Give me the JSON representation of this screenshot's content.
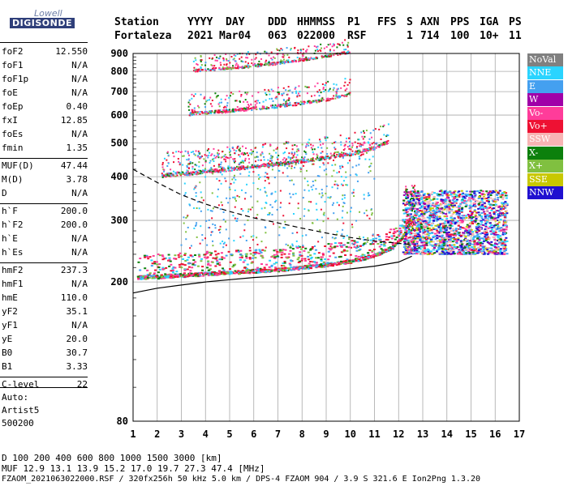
{
  "logo": {
    "line1": "Lowell",
    "line2": "DIGISONDE"
  },
  "header": {
    "labels": [
      "Station",
      "YYYY",
      "DAY",
      "DDD",
      "HHMMSS",
      "P1",
      "FFS",
      "S",
      "AXN",
      "PPS",
      "IGA",
      "PS"
    ],
    "values": [
      "Fortaleza",
      "2021",
      "Mar04",
      "063",
      "022000",
      "RSF",
      "",
      "1",
      "714",
      "100",
      "10+",
      "11"
    ]
  },
  "params": [
    {
      "k": "foF2",
      "v": "12.550"
    },
    {
      "k": "foF1",
      "v": "N/A"
    },
    {
      "k": "foF1p",
      "v": "N/A"
    },
    {
      "k": "foE",
      "v": "N/A"
    },
    {
      "k": "foEp",
      "v": "0.40"
    },
    {
      "k": "fxI",
      "v": "12.85"
    },
    {
      "k": "foEs",
      "v": "N/A"
    },
    {
      "k": "fmin",
      "v": "1.35"
    },
    {
      "k": "MUF(D)",
      "v": "47.44"
    },
    {
      "k": "M(D)",
      "v": "3.78"
    },
    {
      "k": "D",
      "v": "N/A"
    },
    {
      "k": "h`F",
      "v": "200.0"
    },
    {
      "k": "h`F2",
      "v": "200.0"
    },
    {
      "k": "h`E",
      "v": "N/A"
    },
    {
      "k": "h`Es",
      "v": "N/A"
    },
    {
      "k": "hmF2",
      "v": "237.3"
    },
    {
      "k": "hmF1",
      "v": "N/A"
    },
    {
      "k": "hmE",
      "v": "110.0"
    },
    {
      "k": "yF2",
      "v": "35.1"
    },
    {
      "k": "yF1",
      "v": "N/A"
    },
    {
      "k": "yE",
      "v": "20.0"
    },
    {
      "k": "B0",
      "v": "30.7"
    },
    {
      "k": "B1",
      "v": "3.33"
    },
    {
      "k": "C-level",
      "v": "22"
    }
  ],
  "auto": {
    "line1": "Auto:",
    "line2": "Artist5",
    "line3": "500200"
  },
  "legend": [
    {
      "label": "NoVal",
      "color": "#808080"
    },
    {
      "label": "NNE",
      "color": "#2ad4ff"
    },
    {
      "label": "E",
      "color": "#44a0f0"
    },
    {
      "label": "W",
      "color": "#a000a8"
    },
    {
      "label": "Vo-",
      "color": "#ff3c9a"
    },
    {
      "label": "Vo+",
      "color": "#ee1133"
    },
    {
      "label": "SSW",
      "color": "#f8b4b4"
    },
    {
      "label": "X-",
      "color": "#0c800c"
    },
    {
      "label": "X+",
      "color": "#80c040"
    },
    {
      "label": "SSE",
      "color": "#c8c800"
    },
    {
      "label": "NNW",
      "color": "#2010d0"
    }
  ],
  "chart_data": {
    "type": "scatter",
    "title": "",
    "xlabel": "",
    "ylabel": "",
    "xlim": [
      1,
      17
    ],
    "ylim": [
      80,
      900
    ],
    "y_scale": "log",
    "x_ticks": [
      1,
      2,
      3,
      4,
      5,
      6,
      7,
      8,
      9,
      10,
      11,
      12,
      13,
      14,
      15,
      16,
      17
    ],
    "y_ticks": [
      80,
      200,
      300,
      400,
      500,
      600,
      700,
      800,
      900
    ],
    "grid": true,
    "traces": [
      {
        "name": "O-trace",
        "points": [
          [
            1.2,
            204
          ],
          [
            2,
            205
          ],
          [
            3,
            207
          ],
          [
            4,
            209
          ],
          [
            5,
            211
          ],
          [
            6,
            213
          ],
          [
            7,
            215
          ],
          [
            8,
            218
          ],
          [
            9,
            222
          ],
          [
            10,
            227
          ],
          [
            11,
            236
          ],
          [
            11.8,
            250
          ],
          [
            12.3,
            272
          ],
          [
            12.55,
            330
          ]
        ]
      },
      {
        "name": "2-hop",
        "points": [
          [
            2.2,
            400
          ],
          [
            3,
            404
          ],
          [
            4,
            410
          ],
          [
            5,
            417
          ],
          [
            6,
            424
          ],
          [
            7,
            432
          ],
          [
            8,
            440
          ],
          [
            9,
            450
          ],
          [
            10,
            461
          ],
          [
            11,
            480
          ],
          [
            11.6,
            500
          ]
        ]
      },
      {
        "name": "3-hop",
        "points": [
          [
            3.3,
            600
          ],
          [
            4,
            605
          ],
          [
            5,
            613
          ],
          [
            6,
            622
          ],
          [
            7,
            632
          ],
          [
            8,
            645
          ],
          [
            9,
            660
          ],
          [
            10,
            685
          ]
        ]
      },
      {
        "name": "4-hop",
        "points": [
          [
            3.5,
            800
          ],
          [
            4,
            803
          ],
          [
            5,
            812
          ],
          [
            6,
            825
          ],
          [
            7,
            840
          ],
          [
            8,
            858
          ],
          [
            9,
            880
          ],
          [
            10,
            905
          ]
        ]
      }
    ],
    "profile_solid": [
      [
        1,
        186
      ],
      [
        2,
        192
      ],
      [
        3,
        196
      ],
      [
        4,
        200
      ],
      [
        5,
        203
      ],
      [
        6,
        206
      ],
      [
        7,
        208
      ],
      [
        8,
        211
      ],
      [
        9,
        214
      ],
      [
        10,
        218
      ],
      [
        11,
        222
      ],
      [
        12,
        228
      ],
      [
        12.55,
        237
      ]
    ],
    "profile_dashed": [
      [
        1,
        420
      ],
      [
        2,
        385
      ],
      [
        3,
        355
      ],
      [
        4,
        334
      ],
      [
        5,
        318
      ],
      [
        6,
        305
      ],
      [
        7,
        295
      ],
      [
        8,
        285
      ],
      [
        9,
        276
      ],
      [
        10,
        268
      ],
      [
        11,
        262
      ],
      [
        12,
        258
      ],
      [
        12.5,
        256
      ]
    ]
  },
  "footer": {
    "line1": "D    100  200  400  600  800 1000 1500 3000 [km]",
    "line2": "MUF  12.9 13.1 13.9 15.2 17.0 19.7 27.3 47.4 [MHz]",
    "line3": "FZAOM_2021063022000.RSF / 320fx256h 50 kHz 5.0 km / DPS-4 FZAOM 904 / 3.9 S 321.6 E   Ion2Png 1.3.20"
  }
}
